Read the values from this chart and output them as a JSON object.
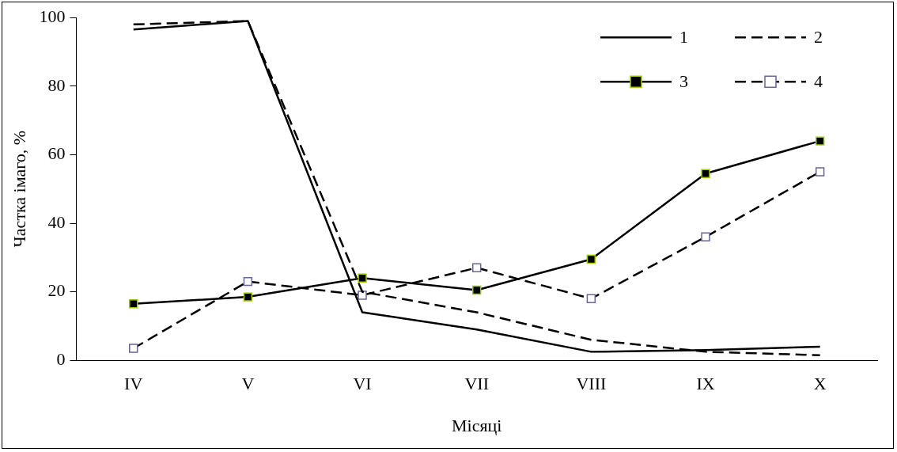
{
  "chart_data": {
    "type": "line",
    "xlabel": "Місяці",
    "ylabel": "Частка імаго, %",
    "categories": [
      "IV",
      "V",
      "VI",
      "VII",
      "VIII",
      "IX",
      "X"
    ],
    "series": [
      {
        "name": "1",
        "color": "#000000",
        "line_style": "solid",
        "marker": "none",
        "values": [
          96.5,
          99,
          14,
          9,
          2.5,
          3,
          4
        ]
      },
      {
        "name": "2",
        "color": "#000000",
        "line_style": "dashed",
        "marker": "none",
        "values": [
          98,
          99,
          20,
          14,
          6,
          2.5,
          1.5
        ]
      },
      {
        "name": "3",
        "color": "#000000",
        "line_style": "solid",
        "marker": "square",
        "values": [
          16.5,
          18.5,
          24,
          20.5,
          29.5,
          54.5,
          64
        ]
      },
      {
        "name": "4",
        "color": "#000000",
        "line_style": "dashed",
        "marker": "square",
        "values": [
          3.5,
          23,
          19,
          27,
          18,
          36,
          55
        ]
      }
    ],
    "ylim": [
      0,
      100
    ],
    "yticks": [
      0,
      20,
      40,
      60,
      80,
      100
    ],
    "grid": false,
    "legend": "top right"
  }
}
